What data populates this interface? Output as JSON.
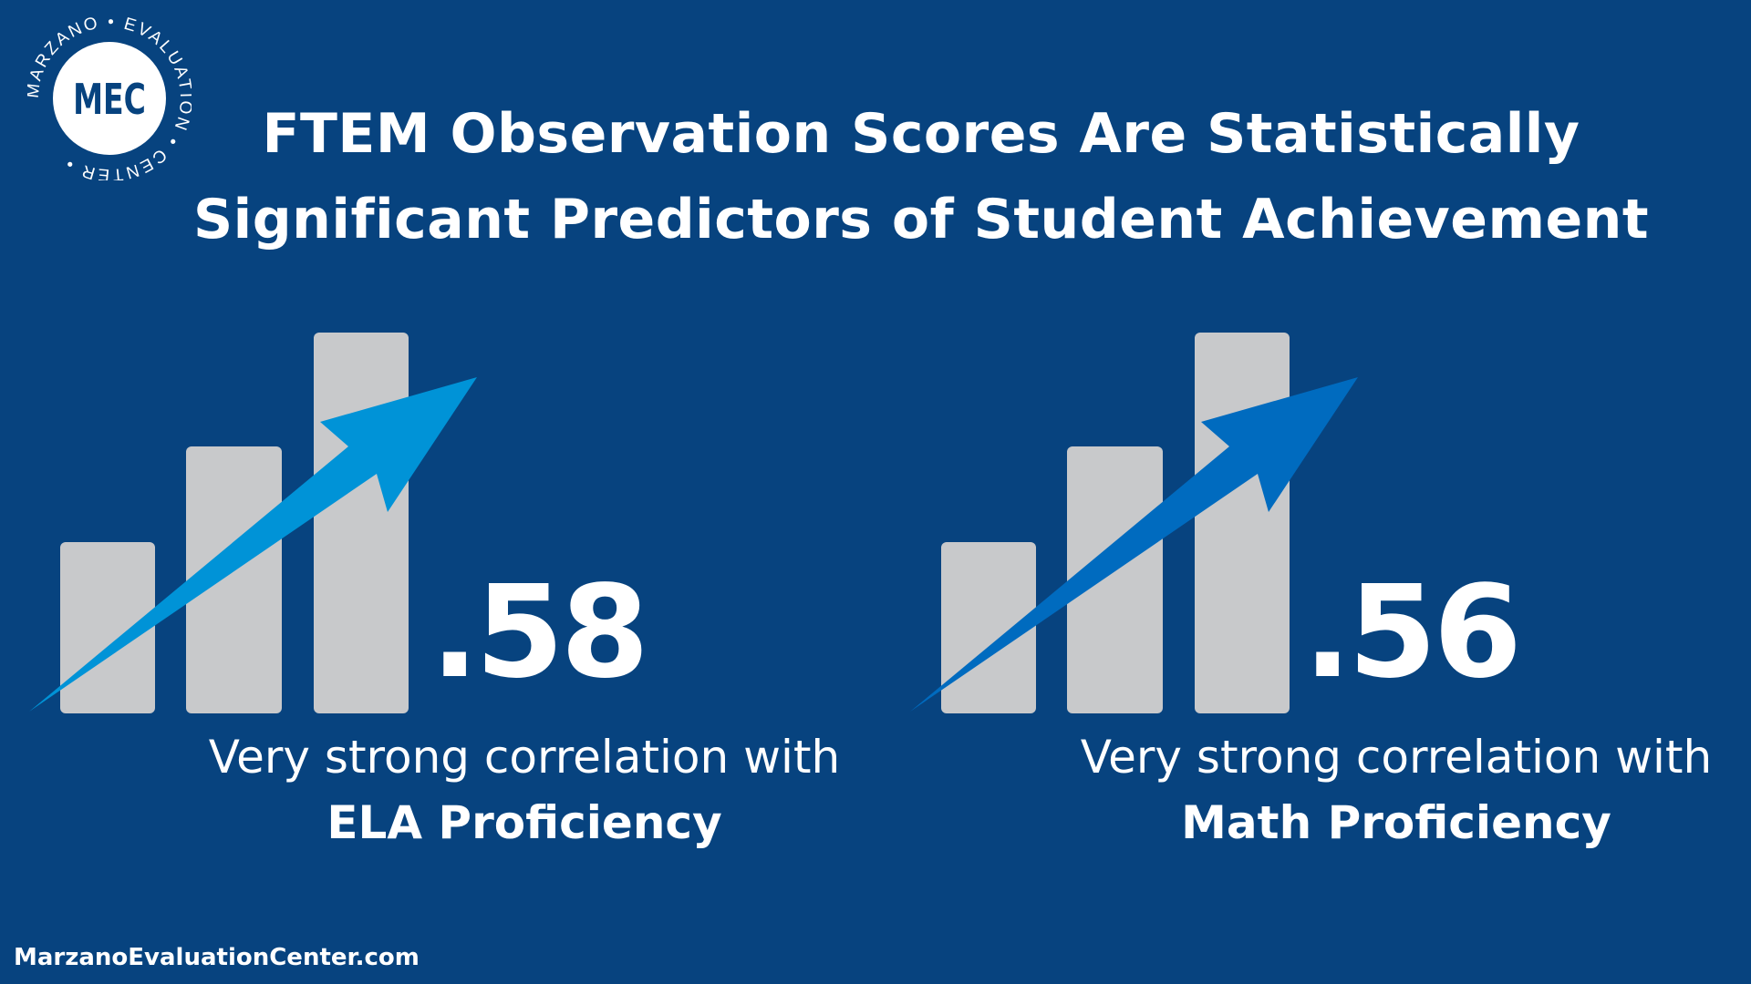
{
  "logo": {
    "initials": "MEC",
    "ring_text": "MARZANO • EVALUATION • CENTER •"
  },
  "title": {
    "line1": "FTEM Observation Scores Are Statistically",
    "line2": "Significant Predictors of Student Achievement"
  },
  "stats": [
    {
      "value": ".58",
      "caption": "Very strong correlation with",
      "subject": "ELA Proficiency",
      "arrow_color": "#0093d7"
    },
    {
      "value": ".56",
      "caption": "Very strong correlation with",
      "subject": "Math Proficiency",
      "arrow_color": "#006bbf"
    }
  ],
  "footer": {
    "website": "MarzanoEvaluationCenter.com"
  },
  "colors": {
    "background": "#07437f",
    "bars": "#c8c9cb"
  }
}
